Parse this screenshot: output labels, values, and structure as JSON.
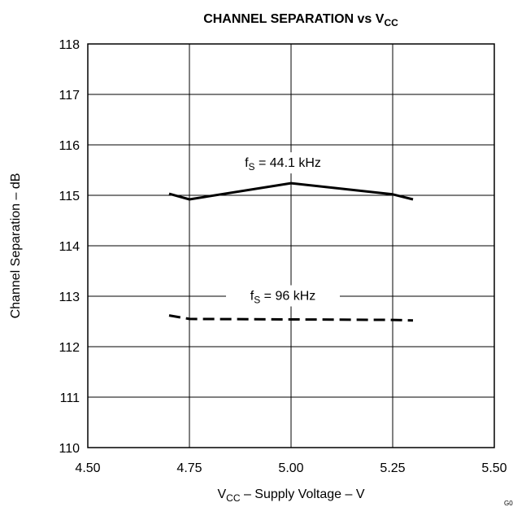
{
  "chart_data": {
    "type": "line",
    "title": "CHANNEL SEPARATION vs V",
    "title_sub": "CC",
    "xlabel_main": "V",
    "xlabel_sub": "CC",
    "xlabel_rest": " – Supply Voltage – V",
    "ylabel": "Channel Separation – dB",
    "xlim": [
      4.5,
      5.5
    ],
    "ylim": [
      110,
      118
    ],
    "x_ticks": [
      "4.50",
      "4.75",
      "5.00",
      "5.25",
      "5.50"
    ],
    "y_ticks": [
      "110",
      "111",
      "112",
      "113",
      "114",
      "115",
      "116",
      "117",
      "118"
    ],
    "grid": true,
    "corner_label": "G0",
    "series": [
      {
        "label_main": "f",
        "label_sub": "S",
        "label_rest": " = 44.1 kHz",
        "style": "solid",
        "x": [
          4.7,
          4.75,
          5.0,
          5.25,
          5.3
        ],
        "y": [
          115.03,
          114.92,
          115.24,
          115.02,
          114.92
        ]
      },
      {
        "label_main": "f",
        "label_sub": "S",
        "label_rest": " = 96 kHz",
        "style": "dashed",
        "x": [
          4.7,
          4.75,
          5.0,
          5.25,
          5.3
        ],
        "y": [
          112.62,
          112.55,
          112.54,
          112.53,
          112.52
        ]
      }
    ]
  }
}
